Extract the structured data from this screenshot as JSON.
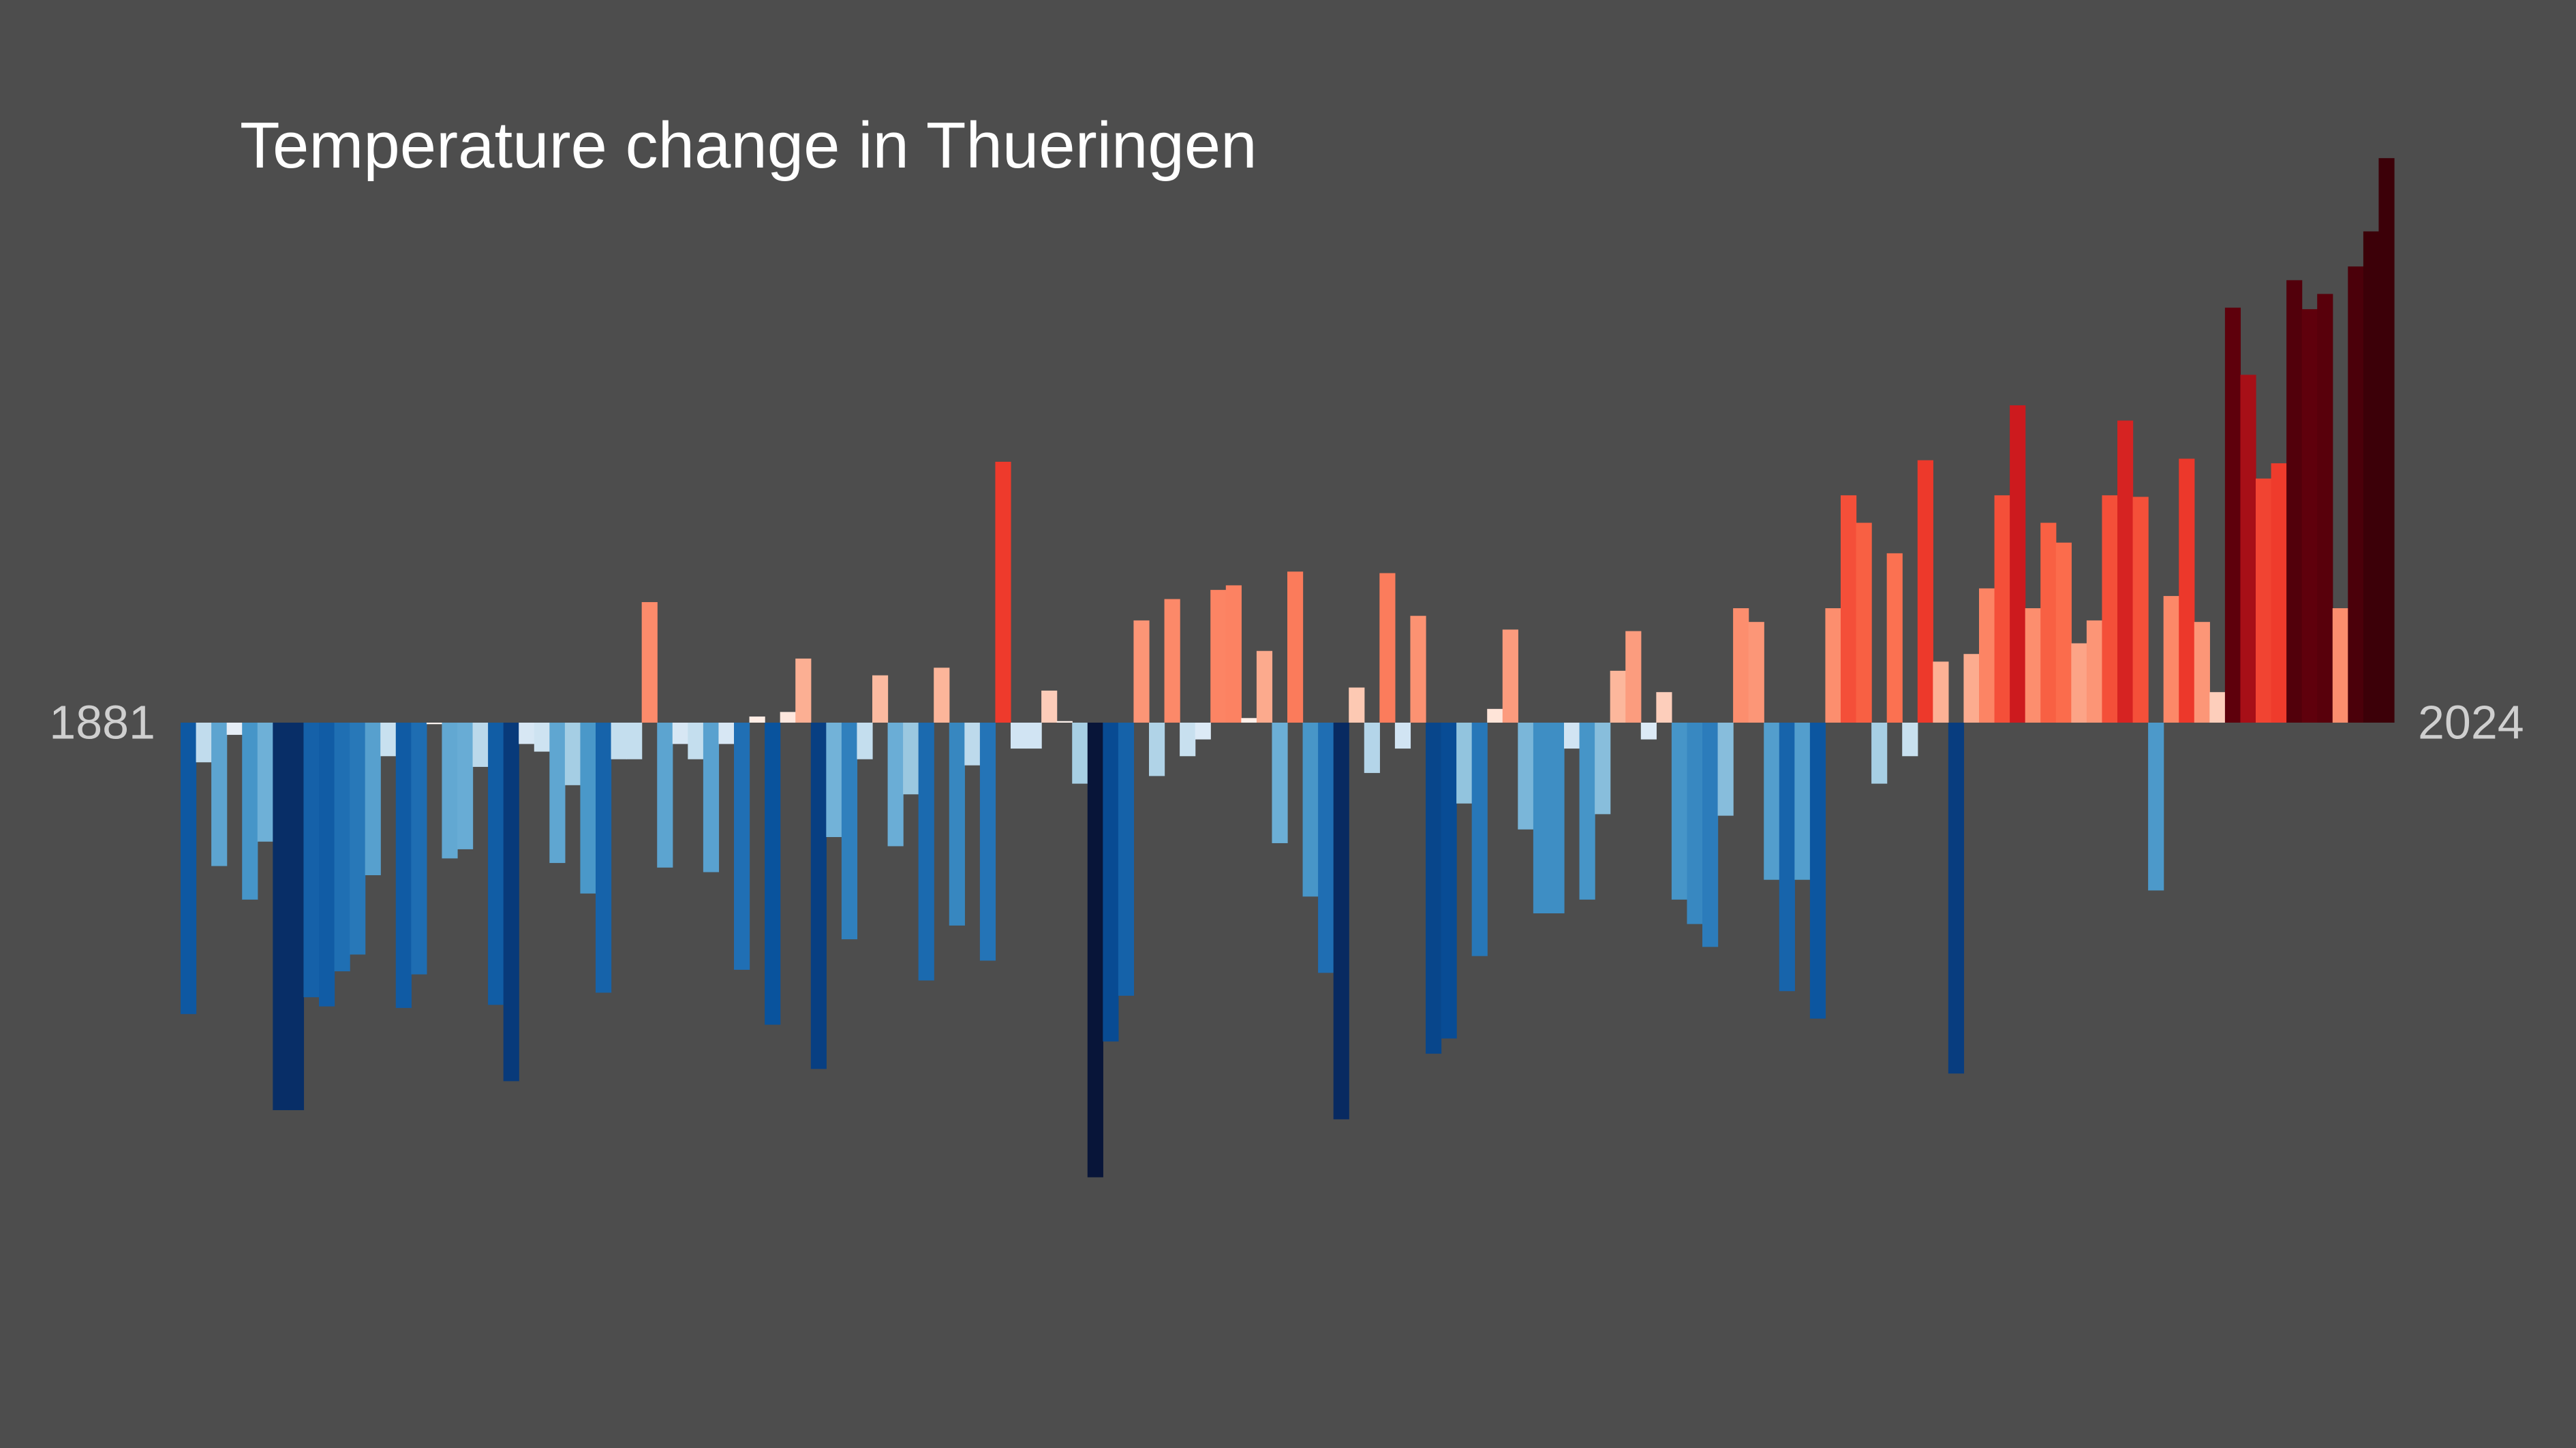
{
  "chart_data": {
    "type": "bar",
    "title": "Temperature change in Thueringen",
    "start_label": "1881",
    "end_label": "2024",
    "x": {
      "start": 1881,
      "end": 2024
    },
    "ylim": [
      -3.6,
      3.6
    ],
    "values": [
      -1.91,
      -0.26,
      -0.94,
      -0.08,
      -1.16,
      -0.78,
      -2.54,
      -2.54,
      -1.8,
      -1.86,
      -1.63,
      -1.52,
      -1.0,
      -0.22,
      -1.87,
      -1.65,
      -0.01,
      -0.89,
      -0.83,
      -0.29,
      -1.85,
      -2.35,
      -0.14,
      -0.19,
      -0.92,
      -0.41,
      -1.12,
      -1.77,
      -0.24,
      -0.24,
      0.79,
      -0.95,
      -0.14,
      -0.24,
      -0.98,
      -0.14,
      -1.62,
      0.04,
      -1.98,
      0.07,
      0.42,
      -2.27,
      -0.75,
      -1.42,
      -0.24,
      0.31,
      -0.81,
      -0.47,
      -1.69,
      0.36,
      -1.33,
      -0.28,
      -1.56,
      1.71,
      -0.17,
      -0.17,
      0.21,
      0.01,
      -0.4,
      -2.98,
      -2.09,
      -1.79,
      0.67,
      -0.35,
      0.81,
      -0.22,
      -0.11,
      0.87,
      0.9,
      0.03,
      0.47,
      -0.79,
      0.99,
      -1.14,
      -1.64,
      -2.6,
      0.23,
      -0.33,
      0.98,
      -0.17,
      0.7,
      -2.17,
      -2.07,
      -0.53,
      -1.53,
      0.09,
      0.61,
      -0.7,
      -1.25,
      -1.25,
      -0.17,
      -1.16,
      -0.6,
      0.34,
      0.6,
      -0.11,
      0.2,
      -1.16,
      -1.32,
      -1.47,
      -0.61,
      0.75,
      0.66,
      -1.03,
      -1.76,
      -1.03,
      -1.94,
      0.75,
      1.49,
      1.31,
      -0.4,
      1.11,
      -0.22,
      1.72,
      0.4,
      -2.3,
      0.45,
      0.88,
      1.49,
      2.08,
      0.75,
      1.31,
      1.18,
      0.52,
      0.67,
      1.49,
      1.98,
      1.48,
      -1.1,
      0.83,
      1.73,
      0.66,
      0.2,
      2.72,
      2.28,
      1.6,
      1.7,
      2.9,
      2.71,
      2.81,
      0.75,
      2.99,
      3.22,
      3.7
    ]
  }
}
